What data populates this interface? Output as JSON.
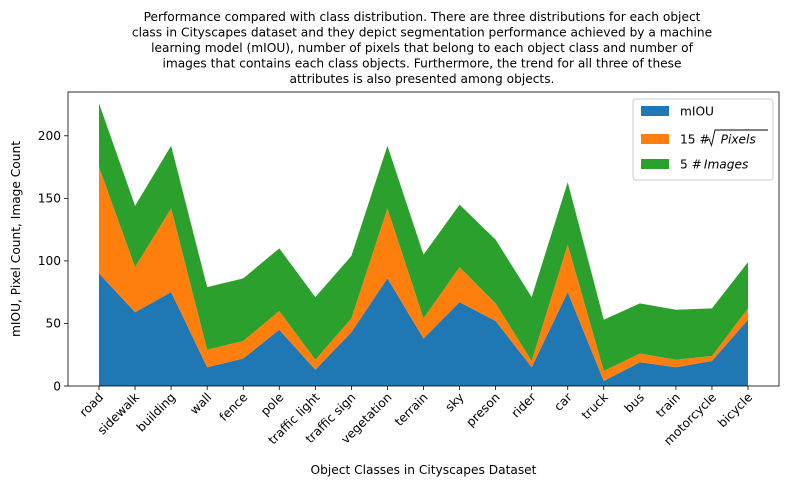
{
  "chart_data": {
    "type": "area",
    "stacked": true,
    "title_lines": [
      "Performance compared with class distribution. There are three distributions for each object",
      "class in Cityscapes dataset and they depict segmentation performance achieved by a machine",
      "learning model (mIOU), number of pixels that belong to each object class and number of",
      "images that contains each class objects. Furthermore, the trend for all three of these",
      "attributes is also presented among objects."
    ],
    "xlabel": "Object Classes in Cityscapes Dataset",
    "ylabel": "mIOU, Pixel Count, Image Count",
    "ylim": [
      0,
      235
    ],
    "yticks": [
      0,
      50,
      100,
      150,
      200
    ],
    "categories": [
      "road",
      "sidewalk",
      "building",
      "wall",
      "fence",
      "pole",
      "traffic light",
      "traffic sign",
      "vegetation",
      "terrain",
      "sky",
      "preson",
      "rider",
      "car",
      "truck",
      "bus",
      "train",
      "motorcycle",
      "bicycle"
    ],
    "series": [
      {
        "name": "mIOU",
        "color": "#1f77b4",
        "values": [
          90,
          59,
          75,
          15,
          22,
          45,
          13,
          43,
          86,
          38,
          67,
          52,
          15,
          75,
          4,
          19,
          15,
          20,
          53
        ]
      },
      {
        "name": "15 #√Pixels",
        "color": "#ff7f0e",
        "values": [
          85,
          36,
          67,
          14,
          14,
          15,
          8,
          11,
          56,
          16,
          28,
          14,
          5,
          38,
          8,
          7,
          6,
          4,
          9
        ]
      },
      {
        "name": "5 #Images",
        "color": "#2ca02c",
        "values": [
          51,
          49,
          50,
          50,
          50,
          50,
          50,
          50,
          50,
          51,
          50,
          51,
          51,
          50,
          41,
          40,
          40,
          38,
          37
        ]
      }
    ],
    "legend": {
      "placement": "top-right",
      "entries": [
        {
          "text": "mIOU",
          "color": "#1f77b4"
        },
        {
          "prefix": "15  #",
          "italic": "Pixels",
          "color": "#ff7f0e"
        },
        {
          "prefix": "5  #",
          "italic": "Images",
          "color": "#2ca02c"
        }
      ]
    },
    "grid": false
  }
}
